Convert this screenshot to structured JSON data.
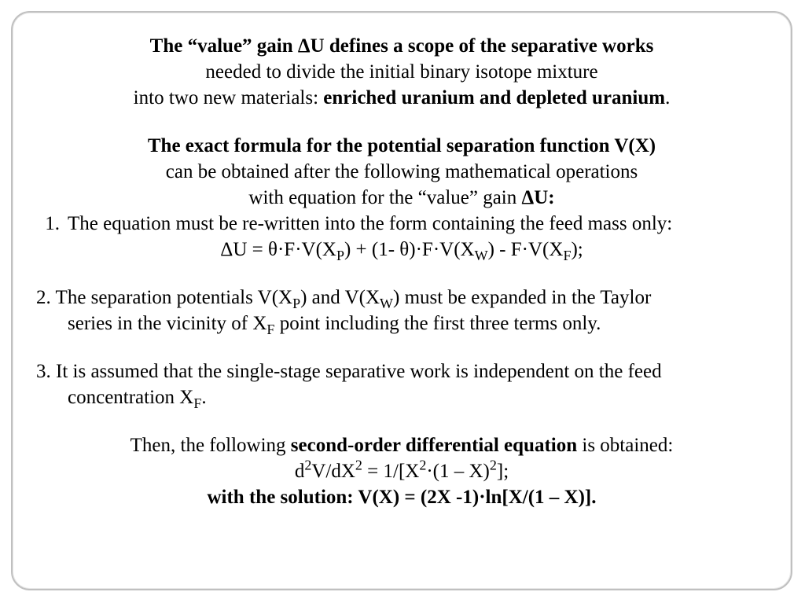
{
  "line_title_strong": "The “value” gain ΔU defines a scope of the separative works",
  "line_title_2": "needed to divide the initial binary isotope mixture",
  "line_title_3a": "into two new materials: ",
  "line_title_3b_bold": "enriched uranium and depleted uranium",
  "line_title_3c": ".",
  "para2_l1_bold": "The exact formula for the potential separation function V(X)",
  "para2_l2": "can be obtained after the following mathematical operations",
  "para2_l3a": "with equation for the “value” gain ",
  "para2_l3b_bold": "ΔU:",
  "item1_num": "1.",
  "item1_text": "The equation must be re-written into the form containing the feed mass only:",
  "item1_eq_a": "ΔU = θ·F·V(X",
  "item1_eq_P": "P",
  "item1_eq_b": ") + (1- θ)·F·V(X",
  "item1_eq_W": "W",
  "item1_eq_c": ") - F·V(X",
  "item1_eq_F": "F",
  "item1_eq_d": ");",
  "item2_l1a": "2. The separation potentials V(X",
  "item2_l1_P": "P",
  "item2_l1b": ") and V(X",
  "item2_l1_W": "W",
  "item2_l1c": ") must be expanded in the Taylor",
  "item2_l2a": "series in the vicinity of X",
  "item2_l2_F": "F",
  "item2_l2b": " point including the first three terms only.",
  "item3_l1": "3. It is assumed that the single-stage separative work is independent on the feed",
  "item3_l2a": "concentration X",
  "item3_l2_F": "F",
  "item3_l2b": ".",
  "final_l1a": "Then, the following ",
  "final_l1b_bold": "second-order differential equation",
  "final_l1c": " is obtained:",
  "final_eq_a": "d",
  "final_eq_s2a": "2",
  "final_eq_b": "V/dX",
  "final_eq_s2b": "2",
  "final_eq_c": " = 1/[X",
  "final_eq_s2c": "2",
  "final_eq_d": "·(1 – X)",
  "final_eq_s2d": "2",
  "final_eq_e": "];",
  "final_solution_bold": "with the solution: V(X) = (2X -1)·ln[X/(1 – X)]."
}
